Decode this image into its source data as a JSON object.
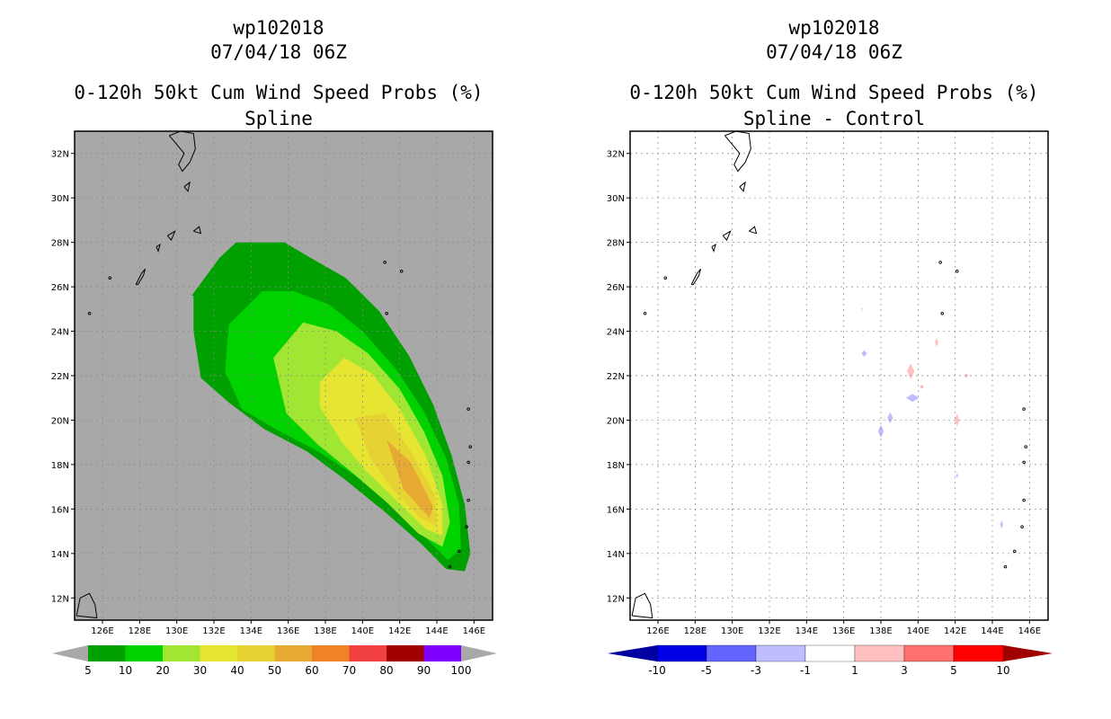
{
  "colors": {
    "land_bg": "#a8a8a8",
    "prob_levels": [
      "#00a000",
      "#00d200",
      "#a0e632",
      "#e6e632",
      "#e6d232",
      "#e6aa32",
      "#f08228",
      "#f04040",
      "#a00000",
      "#8000ff"
    ],
    "diff_levels": [
      "#0000a0",
      "#0000e6",
      "#6464ff",
      "#bebeff",
      "#ffffff",
      "#ffc0c0",
      "#ff7070",
      "#ff0000",
      "#a00000"
    ]
  },
  "chart_data": [
    {
      "type": "heatmap",
      "panel": "left",
      "title_lines": [
        "wp102018",
        "07/04/18 06Z",
        "0-120h 50kt Cum Wind Speed Probs (%)",
        "Spline"
      ],
      "xticks": [
        "126E",
        "128E",
        "130E",
        "132E",
        "134E",
        "136E",
        "138E",
        "140E",
        "142E",
        "144E",
        "146E"
      ],
      "yticks": [
        "12N",
        "14N",
        "16N",
        "18N",
        "20N",
        "22N",
        "24N",
        "26N",
        "28N",
        "30N",
        "32N"
      ],
      "xlim": [
        124.5,
        147
      ],
      "ylim": [
        11,
        33
      ],
      "grid": true,
      "colorbar": {
        "ticks": [
          "5",
          "10",
          "20",
          "30",
          "40",
          "50",
          "60",
          "70",
          "80",
          "90",
          "100"
        ],
        "unit": "%"
      },
      "contours": [
        {
          "level": "5",
          "lon": [
            130.8,
            132.3,
            133.2,
            135.8,
            137.2,
            139.1,
            140.9,
            142.5,
            143.8,
            144.8,
            145.5,
            145.8,
            145.5,
            144.5,
            143.2,
            141.3,
            139.1,
            137.0,
            134.7,
            132.8,
            131.3,
            130.9,
            130.9
          ],
          "lat": [
            25.6,
            27.3,
            28.0,
            28.0,
            27.3,
            26.4,
            24.9,
            22.9,
            20.7,
            18.4,
            16.2,
            14.0,
            13.2,
            13.3,
            14.4,
            15.8,
            17.3,
            18.6,
            19.6,
            20.8,
            21.9,
            24.0,
            25.6
          ]
        },
        {
          "level": "10",
          "lon": [
            132.8,
            134.6,
            136.3,
            138.2,
            140.0,
            141.8,
            143.3,
            144.5,
            145.2,
            145.3,
            144.6,
            143.4,
            141.6,
            139.6,
            137.6,
            135.3,
            133.5,
            132.6,
            132.8
          ],
          "lat": [
            24.3,
            25.8,
            25.8,
            25.2,
            24.0,
            22.3,
            20.4,
            18.3,
            16.2,
            14.2,
            13.7,
            14.7,
            16.1,
            17.5,
            18.6,
            19.6,
            20.5,
            22.2,
            24.3
          ]
        },
        {
          "level": "20",
          "lon": [
            135.2,
            136.8,
            138.6,
            140.3,
            142.0,
            143.3,
            144.3,
            144.7,
            144.3,
            143.0,
            141.3,
            139.5,
            137.6,
            135.9,
            135.2
          ],
          "lat": [
            22.8,
            24.4,
            24.0,
            23.0,
            21.4,
            19.5,
            17.5,
            15.4,
            14.3,
            14.9,
            16.3,
            17.6,
            18.9,
            20.3,
            22.8
          ]
        },
        {
          "level": "30",
          "lon": [
            137.7,
            139.0,
            140.5,
            142.0,
            143.4,
            144.3,
            144.3,
            143.4,
            141.8,
            140.2,
            138.9,
            137.7,
            137.7
          ],
          "lat": [
            21.7,
            22.8,
            22.1,
            20.5,
            18.4,
            16.2,
            14.8,
            15.1,
            16.4,
            17.7,
            19.0,
            20.6,
            21.7
          ]
        },
        {
          "level": "40",
          "lon": [
            139.6,
            141.2,
            142.6,
            143.9,
            144.0,
            143.1,
            141.6,
            140.4,
            139.6
          ],
          "lat": [
            20.1,
            20.3,
            18.6,
            16.6,
            15.2,
            15.6,
            16.9,
            18.3,
            20.1
          ]
        },
        {
          "level": "50",
          "lon": [
            141.3,
            142.6,
            143.8,
            143.6,
            142.2,
            141.3
          ],
          "lat": [
            19.1,
            18.1,
            16.1,
            15.6,
            16.9,
            19.1
          ]
        }
      ]
    },
    {
      "type": "heatmap",
      "panel": "right",
      "title_lines": [
        "wp102018",
        "07/04/18 06Z",
        "0-120h 50kt Cum Wind Speed Probs (%)",
        "Spline - Control"
      ],
      "xticks": [
        "126E",
        "128E",
        "130E",
        "132E",
        "134E",
        "136E",
        "138E",
        "140E",
        "142E",
        "144E",
        "146E"
      ],
      "yticks": [
        "12N",
        "14N",
        "16N",
        "18N",
        "20N",
        "22N",
        "24N",
        "26N",
        "28N",
        "30N",
        "32N"
      ],
      "xlim": [
        124.5,
        147
      ],
      "ylim": [
        11,
        33
      ],
      "grid": true,
      "colorbar": {
        "ticks": [
          "-10",
          "-5",
          "-3",
          "-1",
          "1",
          "3",
          "5",
          "10"
        ],
        "unit": "%"
      },
      "anomalies": [
        {
          "sign": "neg",
          "lon": 139.7,
          "lat": 21.0,
          "rx": 0.35,
          "ry": 0.18
        },
        {
          "sign": "neg",
          "lon": 138.5,
          "lat": 20.1,
          "rx": 0.15,
          "ry": 0.25
        },
        {
          "sign": "neg",
          "lon": 138.0,
          "lat": 19.5,
          "rx": 0.15,
          "ry": 0.3
        },
        {
          "sign": "neg",
          "lon": 137.1,
          "lat": 23.0,
          "rx": 0.15,
          "ry": 0.15
        },
        {
          "sign": "neg",
          "lon": 144.5,
          "lat": 15.3,
          "rx": 0.08,
          "ry": 0.18
        },
        {
          "sign": "neg",
          "lon": 142.1,
          "lat": 17.5,
          "rx": 0.06,
          "ry": 0.1
        },
        {
          "sign": "pos",
          "lon": 139.6,
          "lat": 22.2,
          "rx": 0.2,
          "ry": 0.35
        },
        {
          "sign": "pos",
          "lon": 142.1,
          "lat": 20.0,
          "rx": 0.12,
          "ry": 0.3
        },
        {
          "sign": "pos",
          "lon": 141.0,
          "lat": 23.5,
          "rx": 0.1,
          "ry": 0.2
        },
        {
          "sign": "pos",
          "lon": 140.2,
          "lat": 21.5,
          "rx": 0.12,
          "ry": 0.1
        },
        {
          "sign": "pos",
          "lon": 142.6,
          "lat": 22.0,
          "rx": 0.12,
          "ry": 0.1
        },
        {
          "sign": "pos",
          "lon": 137.0,
          "lat": 25.0,
          "rx": 0.06,
          "ry": 0.05
        }
      ]
    }
  ]
}
